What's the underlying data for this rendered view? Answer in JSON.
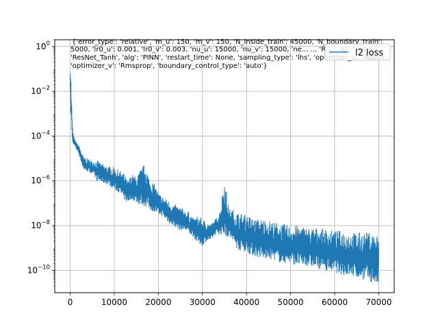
{
  "chart_data": {
    "type": "line",
    "title_lines": [
      "{'error_type': 'relative', 'm_u': 150, 'm_v': 150, 'N_inside_train': 45000, 'N_boundary_train':",
      "5000, 'lr0_u': 0.001, 'lr0_v': 0.003, 'nu_u': 15000, 'nu_v': 15000, 'ne... ... 'R... ...lu', 'net_v':",
      "'ResNet_Tanh', 'alg': 'PINN', 'restart_time': None, 'sampling_type': 'lhs', 'optimizer_u': 'Adam',",
      "'optimizer_v': 'Rmsprop', 'boundary_control_type': 'auto'}"
    ],
    "xlabel": "",
    "ylabel": "",
    "xlim": [
      -3500,
      73500
    ],
    "ylim": [
      1e-11,
      2
    ],
    "yscale": "log",
    "grid": true,
    "legend_position": "top-right",
    "color": "#1f77b4",
    "x_ticks": [
      0,
      10000,
      20000,
      30000,
      40000,
      50000,
      60000,
      70000
    ],
    "x_tick_labels": [
      "0",
      "10000",
      "20000",
      "30000",
      "40000",
      "50000",
      "60000",
      "70000"
    ],
    "y_ticks": [
      1e-10,
      1e-08,
      1e-06,
      0.0001,
      0.01,
      1
    ],
    "y_tick_labels": [
      {
        "base": "10",
        "exp": "−10"
      },
      {
        "base": "10",
        "exp": "−8"
      },
      {
        "base": "10",
        "exp": "−6"
      },
      {
        "base": "10",
        "exp": "−4"
      },
      {
        "base": "10",
        "exp": "−2"
      },
      {
        "base": "10",
        "exp": "0"
      }
    ],
    "series": [
      {
        "name": "l2 loss",
        "x": [
          0,
          200,
          500,
          800,
          1200,
          2000,
          3000,
          4000,
          5000,
          6000,
          7000,
          8000,
          9000,
          10000,
          11000,
          12000,
          13000,
          14000,
          15000,
          16000,
          17000,
          18000,
          19000,
          20000,
          21000,
          22000,
          23000,
          24000,
          25000,
          26000,
          27000,
          28000,
          29000,
          30000,
          31000,
          32000,
          33000,
          34000,
          35000,
          36000,
          37000,
          38000,
          40000,
          42000,
          44000,
          46000,
          48000,
          50000,
          52000,
          54000,
          56000,
          58000,
          60000,
          62000,
          64000,
          66000,
          68000,
          70000
        ],
        "upper": [
          1.0,
          0.03,
          0.0003,
          0.0001,
          6e-05,
          4e-05,
          1.2e-05,
          1e-05,
          8e-06,
          9e-06,
          6e-06,
          5e-06,
          4.5e-06,
          4e-06,
          3e-06,
          2.5e-06,
          1e-06,
          2e-06,
          1.5e-06,
          3.5e-06,
          6e-06,
          1.2e-06,
          8e-07,
          3e-07,
          2e-07,
          1.5e-07,
          1e-07,
          8e-08,
          7e-08,
          5e-08,
          4e-08,
          2e-08,
          3e-08,
          2e-08,
          1.5e-08,
          1.2e-08,
          2e-08,
          5e-08,
          1.5e-06,
          6e-08,
          5e-08,
          4e-08,
          3e-08,
          2e-08,
          2e-08,
          1.5e-08,
          1.2e-08,
          1e-08,
          1e-08,
          8e-09,
          8e-09,
          7e-09,
          6e-09,
          6e-09,
          5e-09,
          5e-09,
          5e-09,
          4e-09
        ],
        "lower": [
          0.002,
          0.0005,
          5e-05,
          4e-05,
          3e-05,
          1.5e-05,
          3e-06,
          2.5e-06,
          2e-06,
          1e-06,
          8e-07,
          7e-07,
          6e-07,
          4e-07,
          3e-07,
          1.5e-07,
          1e-07,
          1.5e-07,
          1e-07,
          8e-08,
          7e-08,
          5e-08,
          4e-08,
          3e-08,
          2.5e-08,
          1.5e-08,
          1e-08,
          8e-09,
          6e-09,
          6e-09,
          4e-09,
          3e-09,
          1.5e-09,
          1.2e-09,
          2e-09,
          2e-09,
          4e-09,
          4e-09,
          3e-09,
          3e-09,
          1.5e-09,
          8e-10,
          6e-10,
          4e-10,
          3e-10,
          3e-10,
          2e-10,
          2e-10,
          1.5e-10,
          1.5e-10,
          1.2e-10,
          1e-10,
          8e-11,
          6e-11,
          5e-11,
          4e-11,
          3e-11,
          2e-11
        ]
      }
    ]
  }
}
